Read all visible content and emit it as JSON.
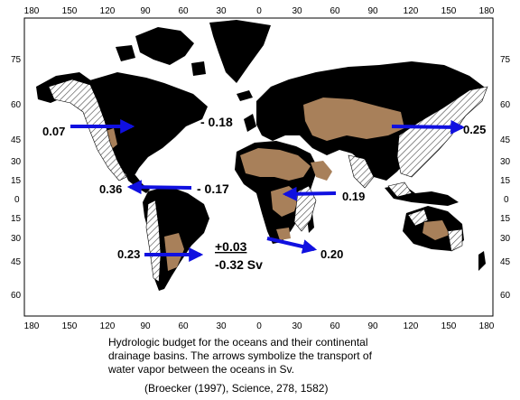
{
  "map": {
    "lon_ticks": [
      "180",
      "150",
      "120",
      "90",
      "60",
      "30",
      "0",
      "30",
      "60",
      "90",
      "120",
      "150",
      "180"
    ],
    "lat_ticks": [
      "75",
      "60",
      "45",
      "30",
      "15",
      "0",
      "15",
      "30",
      "45",
      "60"
    ],
    "colors": {
      "land": "#000000",
      "basin_atlantic": "#a8805a",
      "basin_pacific_hatch": "#555555",
      "arrow": "#1010e0"
    },
    "ocean_budgets": {
      "north_pacific": "0.07",
      "north_atlantic": "- 0.18",
      "tropical_atlantic": "- 0.17",
      "west_pacific_tropics": "0.36",
      "indian_to_atlantic": "0.19",
      "south_atlantic_in": "0.23",
      "south_atlantic_balance": "+0.03",
      "south_atlantic_net": "-0.32 Sv",
      "south_atlantic_out": "0.20",
      "east_asia": "0.25"
    }
  },
  "caption": {
    "line1": "Hydrologic budget for the oceans and their continental",
    "line2": "drainage basins. The arrows symbolize the transport of",
    "line3": "water vapor between the oceans in Sv.",
    "citation": "(Broecker (1997), Science, 278, 1582)"
  }
}
